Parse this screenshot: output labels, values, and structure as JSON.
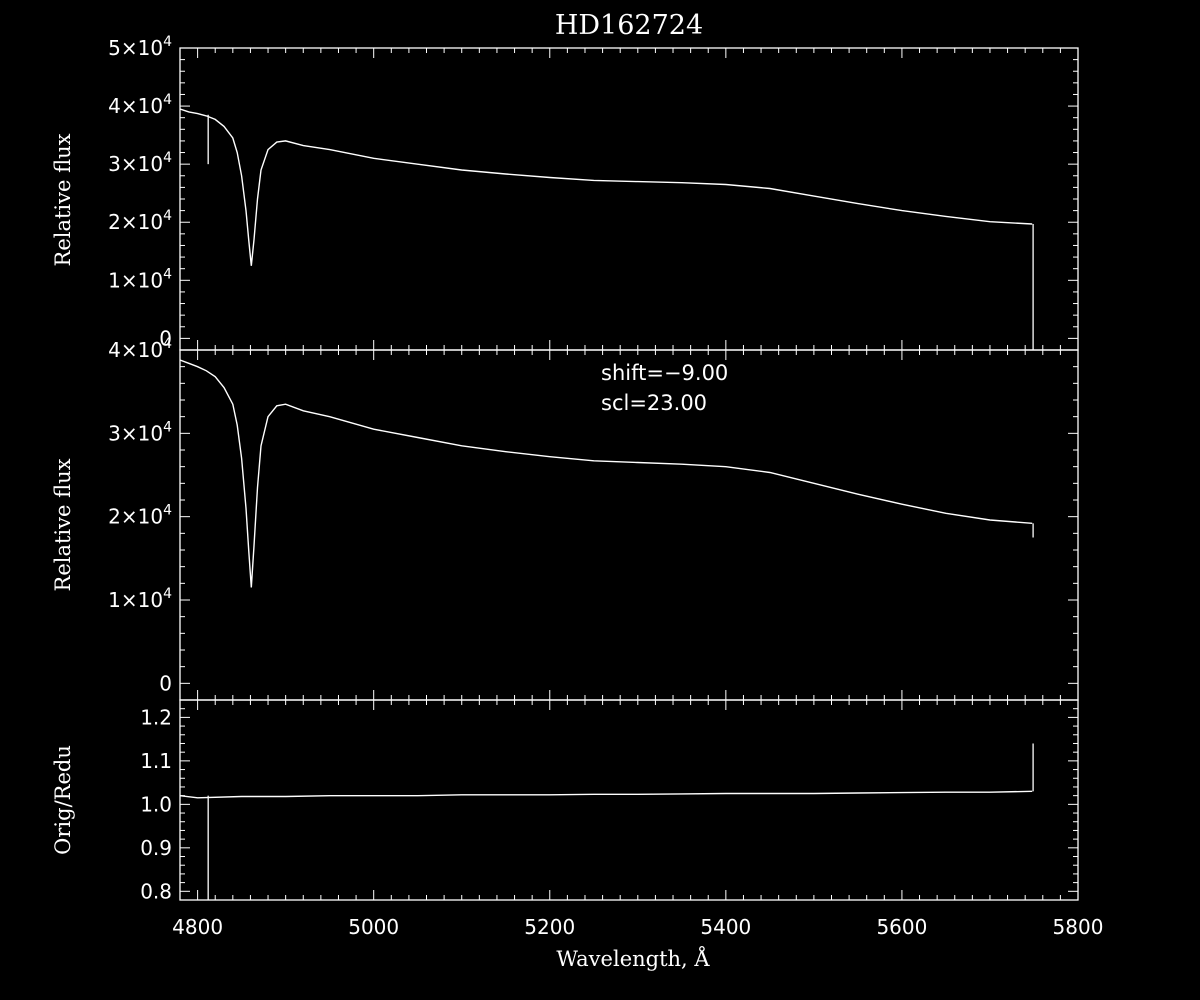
{
  "title": "HD162724",
  "colors": {
    "background": "#000000",
    "foreground": "#ffffff"
  },
  "x_axis": {
    "label": "Wavelength, Å",
    "range": [
      4780,
      5800
    ],
    "ticks": [
      "4800",
      "5000",
      "5200",
      "5400",
      "5600",
      "5800"
    ],
    "tick_values": [
      4800,
      5000,
      5200,
      5400,
      5600,
      5800
    ]
  },
  "chart_data": [
    {
      "type": "line",
      "panel": "top",
      "title": "HD162724",
      "xlabel": "",
      "ylabel": "Relative flux",
      "xlim": [
        4780,
        5800
      ],
      "ylim": [
        -2000,
        50000
      ],
      "grid": false,
      "ytick_values": [
        0,
        10000,
        20000,
        30000,
        40000,
        50000
      ],
      "ytick_labels": [
        {
          "base": "0",
          "exp": ""
        },
        {
          "base": "1×10",
          "exp": "4"
        },
        {
          "base": "2×10",
          "exp": "4"
        },
        {
          "base": "3×10",
          "exp": "4"
        },
        {
          "base": "4×10",
          "exp": "4"
        },
        {
          "base": "5×10",
          "exp": "4"
        }
      ],
      "series": [
        {
          "x": [
            4780,
            4790,
            4800,
            4810,
            4820,
            4830,
            4840,
            4845,
            4850,
            4855,
            4858,
            4861,
            4864,
            4868,
            4872,
            4880,
            4890,
            4900,
            4920,
            4950,
            5000,
            5050,
            5100,
            5150,
            5200,
            5250,
            5300,
            5350,
            5400,
            5450,
            5500,
            5550,
            5600,
            5650,
            5700,
            5748
          ],
          "y": [
            39500,
            39000,
            38700,
            38300,
            37700,
            36500,
            34500,
            32000,
            28000,
            22000,
            17000,
            12500,
            17000,
            24000,
            29000,
            32500,
            33800,
            34000,
            33200,
            32500,
            31000,
            30000,
            29000,
            28300,
            27700,
            27200,
            27000,
            26800,
            26500,
            25800,
            24500,
            23200,
            22000,
            21000,
            20100,
            19700
          ]
        }
      ],
      "features": [
        {
          "x": 4812,
          "y_from": 30000,
          "y_to": 38500
        },
        {
          "x": 5749,
          "y_from": -2000,
          "y_to": 19700
        }
      ]
    },
    {
      "type": "line",
      "panel": "middle",
      "xlabel": "",
      "ylabel": "Relative flux",
      "xlim": [
        4780,
        5800
      ],
      "ylim": [
        -2000,
        40000
      ],
      "grid": false,
      "annotations": [
        "shift=−9.00",
        "scl=23.00"
      ],
      "ytick_values": [
        0,
        10000,
        20000,
        30000,
        40000
      ],
      "ytick_labels": [
        {
          "base": "0",
          "exp": ""
        },
        {
          "base": "1×10",
          "exp": "4"
        },
        {
          "base": "2×10",
          "exp": "4"
        },
        {
          "base": "3×10",
          "exp": "4"
        },
        {
          "base": "4×10",
          "exp": "4"
        }
      ],
      "series": [
        {
          "x": [
            4780,
            4790,
            4800,
            4810,
            4820,
            4830,
            4840,
            4845,
            4850,
            4855,
            4858,
            4861,
            4864,
            4868,
            4872,
            4880,
            4890,
            4900,
            4920,
            4950,
            5000,
            5050,
            5100,
            5150,
            5200,
            5250,
            5300,
            5350,
            5400,
            5450,
            5500,
            5550,
            5600,
            5650,
            5700,
            5748
          ],
          "y": [
            38800,
            38400,
            38000,
            37500,
            36800,
            35500,
            33500,
            31000,
            27000,
            21000,
            16000,
            11500,
            16500,
            23500,
            28500,
            32000,
            33300,
            33500,
            32700,
            32000,
            30500,
            29500,
            28500,
            27800,
            27200,
            26700,
            26500,
            26300,
            26000,
            25300,
            24000,
            22700,
            21500,
            20400,
            19600,
            19200
          ]
        }
      ],
      "features": [
        {
          "x": 5749,
          "y_from": 17500,
          "y_to": 19200
        }
      ]
    },
    {
      "type": "line",
      "panel": "bottom",
      "xlabel": "Wavelength, Å",
      "ylabel": "Orig/Redu",
      "xlim": [
        4780,
        5800
      ],
      "ylim": [
        0.78,
        1.24
      ],
      "grid": false,
      "ytick_values": [
        0.8,
        0.9,
        1.0,
        1.1,
        1.2
      ],
      "ytick_labels": [
        {
          "base": "0.8",
          "exp": ""
        },
        {
          "base": "0.9",
          "exp": ""
        },
        {
          "base": "1.0",
          "exp": ""
        },
        {
          "base": "1.1",
          "exp": ""
        },
        {
          "base": "1.2",
          "exp": ""
        }
      ],
      "series": [
        {
          "x": [
            4780,
            4800,
            4850,
            4900,
            4950,
            5000,
            5050,
            5100,
            5150,
            5200,
            5250,
            5300,
            5350,
            5400,
            5450,
            5500,
            5550,
            5600,
            5650,
            5700,
            5748
          ],
          "y": [
            1.02,
            1.015,
            1.018,
            1.018,
            1.02,
            1.02,
            1.02,
            1.022,
            1.022,
            1.022,
            1.023,
            1.023,
            1.024,
            1.025,
            1.025,
            1.025,
            1.026,
            1.027,
            1.028,
            1.028,
            1.03
          ]
        }
      ],
      "features": [
        {
          "x": 4812,
          "y_from": 0.78,
          "y_to": 1.02
        },
        {
          "x": 5749,
          "y_from": 1.03,
          "y_to": 1.14
        }
      ]
    }
  ]
}
